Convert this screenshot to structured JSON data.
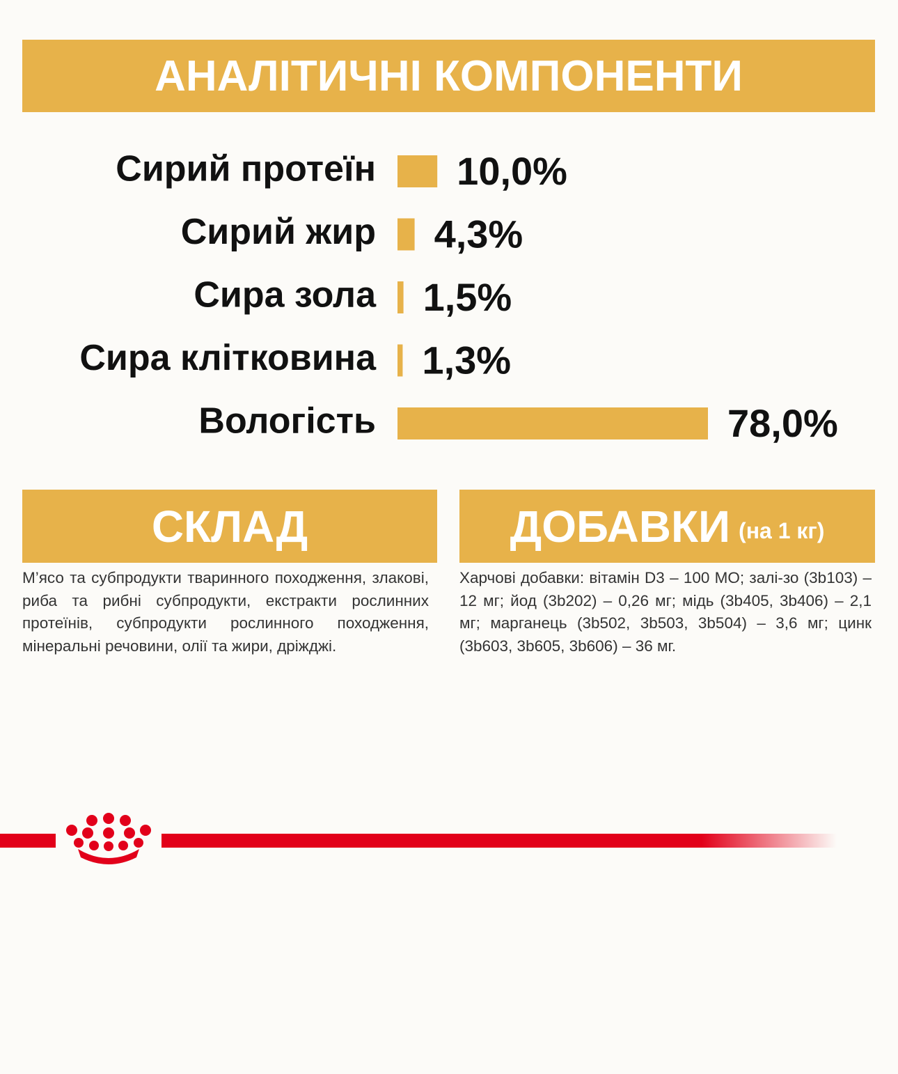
{
  "chart_data": {
    "type": "bar",
    "orientation": "horizontal",
    "title": "АНАЛІТИЧНІ КОМПОНЕНТИ",
    "categories": [
      "Сирий протеїн",
      "Сирий жир",
      "Сира зола",
      "Сира клітковина",
      "Вологість"
    ],
    "values": [
      10.0,
      4.3,
      1.5,
      1.3,
      78.0
    ],
    "value_labels": [
      "10,0%",
      "4,3%",
      "1,5%",
      "1,3%",
      "78,0%"
    ],
    "color": "#e7b24a"
  },
  "composition": {
    "title": "СКЛАД",
    "text": "М’ясо та субпродукти тваринного походження, злакові, риба та рибні субпродукти, екстракти рослинних протеїнів, субпродукти рослинного походження, мінеральні речовини, олії та жири, дріжджі."
  },
  "additives": {
    "title": "ДОБАВКИ",
    "subtitle": "(на 1 кг)",
    "text": "Харчові добавки: вітамін D3 – 100 МО; залі-зо (3b103) – 12 мг; йод (3b202) – 0,26 мг; мідь (3b405, 3b406) – 2,1 мг; марганець (3b502, 3b503, 3b504) – 3,6 мг; цинк (3b603, 3b605, 3b606) – 36 мг."
  }
}
